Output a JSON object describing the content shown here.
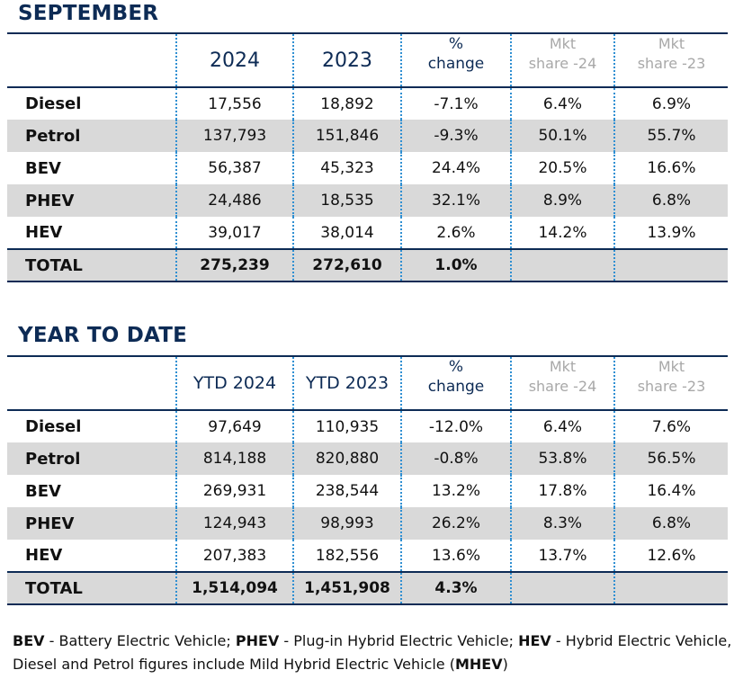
{
  "september": {
    "title": "SEPTEMBER",
    "headers": {
      "y1": "2024",
      "y2": "2023",
      "pct_line1": "%",
      "pct_line2": "change",
      "mkt1_line1": "Mkt",
      "mkt1_line2": "share -24",
      "mkt2_line1": "Mkt",
      "mkt2_line2": "share -23"
    },
    "rows": [
      {
        "label": "Diesel",
        "y1": "17,556",
        "y2": "18,892",
        "pct": "-7.1%",
        "mkt1": "6.4%",
        "mkt2": "6.9%"
      },
      {
        "label": "Petrol",
        "y1": "137,793",
        "y2": "151,846",
        "pct": "-9.3%",
        "mkt1": "50.1%",
        "mkt2": "55.7%"
      },
      {
        "label": "BEV",
        "y1": "56,387",
        "y2": "45,323",
        "pct": "24.4%",
        "mkt1": "20.5%",
        "mkt2": "16.6%"
      },
      {
        "label": "PHEV",
        "y1": "24,486",
        "y2": "18,535",
        "pct": "32.1%",
        "mkt1": "8.9%",
        "mkt2": "6.8%"
      },
      {
        "label": "HEV",
        "y1": "39,017",
        "y2": "38,014",
        "pct": "2.6%",
        "mkt1": "14.2%",
        "mkt2": "13.9%"
      }
    ],
    "total": {
      "label": "TOTAL",
      "y1": "275,239",
      "y2": "272,610",
      "pct": "1.0%"
    }
  },
  "ytd": {
    "title": "YEAR TO DATE",
    "headers": {
      "y1": "YTD 2024",
      "y2": "YTD 2023",
      "pct_line1": "%",
      "pct_line2": "change",
      "mkt1_line1": "Mkt",
      "mkt1_line2": "share -24",
      "mkt2_line1": "Mkt",
      "mkt2_line2": "share -23"
    },
    "rows": [
      {
        "label": "Diesel",
        "y1": "97,649",
        "y2": "110,935",
        "pct": "-12.0%",
        "mkt1": "6.4%",
        "mkt2": "7.6%"
      },
      {
        "label": "Petrol",
        "y1": "814,188",
        "y2": "820,880",
        "pct": "-0.8%",
        "mkt1": "53.8%",
        "mkt2": "56.5%"
      },
      {
        "label": "BEV",
        "y1": "269,931",
        "y2": "238,544",
        "pct": "13.2%",
        "mkt1": "17.8%",
        "mkt2": "16.4%"
      },
      {
        "label": "PHEV",
        "y1": "124,943",
        "y2": "98,993",
        "pct": "26.2%",
        "mkt1": "8.3%",
        "mkt2": "6.8%"
      },
      {
        "label": "HEV",
        "y1": "207,383",
        "y2": "182,556",
        "pct": "13.6%",
        "mkt1": "13.7%",
        "mkt2": "12.6%"
      }
    ],
    "total": {
      "label": "TOTAL",
      "y1": "1,514,094",
      "y2": "1,451,908",
      "pct": "4.3%"
    }
  },
  "footnote": {
    "bev_abbr": "BEV",
    "bev_text": " - Battery Electric Vehicle; ",
    "phev_abbr": "PHEV",
    "phev_text": " - Plug-in Hybrid Electric Vehicle; ",
    "hev_abbr": "HEV",
    "hev_text": " - Hybrid Electric Vehicle,",
    "line2_text": "Diesel and Petrol figures include Mild Hybrid Electric Vehicle (",
    "mhev_abbr": "MHEV",
    "line2_end": ")"
  },
  "colors": {
    "title": "#0d2b55",
    "dotted_divider": "#2f8fd2",
    "shade": "#d9d9d9",
    "muted_header": "#a8a8a8"
  }
}
